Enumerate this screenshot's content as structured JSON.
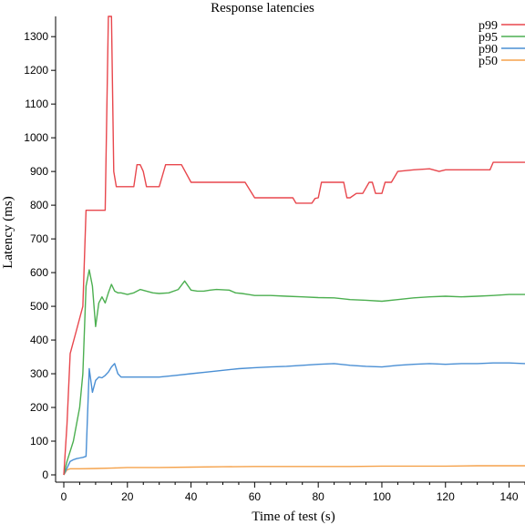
{
  "chart_data": {
    "type": "line",
    "title": "Response latencies",
    "xlabel": "Time of test (s)",
    "ylabel": "Latency (ms)",
    "xlim": [
      0,
      145
    ],
    "ylim": [
      0,
      1360
    ],
    "xticks": [
      0,
      20,
      40,
      60,
      80,
      100,
      120,
      140
    ],
    "yticks": [
      0,
      100,
      200,
      300,
      400,
      500,
      600,
      700,
      800,
      900,
      1000,
      1100,
      1200,
      1300
    ],
    "grid": false,
    "legend_position": "top-right",
    "series": [
      {
        "name": "p99",
        "color": "#e8474d",
        "x": [
          0,
          1,
          2,
          4,
          6,
          7,
          8,
          10,
          13,
          14,
          15,
          15.7,
          16.5,
          18,
          20,
          22,
          23,
          24,
          25,
          26,
          27,
          30,
          32,
          35,
          36,
          37,
          40,
          50,
          55,
          57,
          60,
          65,
          70,
          72,
          73,
          75,
          77,
          78,
          79,
          80,
          81,
          85,
          87,
          88,
          89,
          90,
          92,
          93,
          94,
          96,
          97,
          98,
          99,
          100,
          101,
          102,
          103,
          105,
          110,
          115,
          118,
          120,
          125,
          130,
          133,
          134,
          135,
          140,
          145
        ],
        "y": [
          0,
          150,
          360,
          430,
          500,
          785,
          785,
          785,
          785,
          1360,
          1360,
          900,
          855,
          855,
          855,
          855,
          920,
          920,
          900,
          855,
          855,
          855,
          920,
          920,
          920,
          920,
          868,
          868,
          868,
          868,
          822,
          822,
          822,
          822,
          806,
          806,
          806,
          806,
          820,
          822,
          868,
          868,
          868,
          868,
          822,
          822,
          835,
          835,
          835,
          868,
          868,
          835,
          835,
          835,
          868,
          868,
          868,
          900,
          905,
          908,
          900,
          905,
          905,
          905,
          905,
          905,
          927,
          927,
          927
        ]
      },
      {
        "name": "p95",
        "color": "#4caf50",
        "x": [
          0,
          1,
          3,
          5,
          6,
          7,
          8,
          9,
          10,
          11,
          12,
          13,
          14,
          15,
          16,
          17,
          18,
          20,
          22,
          24,
          26,
          28,
          30,
          33,
          36,
          38,
          40,
          42,
          44,
          46,
          48,
          52,
          54,
          56,
          58,
          60,
          65,
          70,
          75,
          80,
          85,
          90,
          95,
          100,
          105,
          110,
          115,
          120,
          125,
          130,
          135,
          140,
          145
        ],
        "y": [
          0,
          40,
          100,
          200,
          300,
          560,
          608,
          560,
          440,
          510,
          528,
          510,
          540,
          565,
          545,
          540,
          540,
          535,
          540,
          550,
          545,
          540,
          538,
          540,
          550,
          575,
          548,
          545,
          545,
          548,
          550,
          548,
          540,
          538,
          535,
          532,
          532,
          530,
          528,
          526,
          525,
          520,
          518,
          515,
          520,
          525,
          528,
          530,
          528,
          530,
          532,
          535,
          535
        ]
      },
      {
        "name": "p90",
        "color": "#4a8fd4",
        "x": [
          0,
          1,
          2,
          3,
          4,
          5,
          6,
          7,
          8,
          9,
          10,
          11,
          12,
          13,
          14,
          15,
          16,
          17,
          18,
          20,
          25,
          30,
          35,
          40,
          45,
          50,
          55,
          60,
          65,
          70,
          75,
          80,
          85,
          90,
          95,
          100,
          105,
          110,
          115,
          120,
          125,
          130,
          135,
          140,
          145
        ],
        "y": [
          0,
          20,
          40,
          45,
          48,
          50,
          52,
          55,
          315,
          245,
          280,
          290,
          288,
          295,
          305,
          320,
          330,
          300,
          290,
          290,
          290,
          290,
          295,
          300,
          305,
          310,
          315,
          318,
          320,
          322,
          325,
          328,
          330,
          325,
          322,
          320,
          325,
          328,
          330,
          328,
          330,
          330,
          332,
          332,
          330
        ]
      },
      {
        "name": "p50",
        "color": "#f5a24b",
        "x": [
          0,
          1,
          2,
          5,
          10,
          15,
          20,
          30,
          40,
          50,
          60,
          70,
          80,
          90,
          100,
          110,
          120,
          130,
          140,
          145
        ],
        "y": [
          0,
          15,
          18,
          18,
          19,
          20,
          22,
          22,
          23,
          24,
          25,
          25,
          25,
          25,
          26,
          26,
          26,
          27,
          27,
          27
        ]
      }
    ]
  }
}
